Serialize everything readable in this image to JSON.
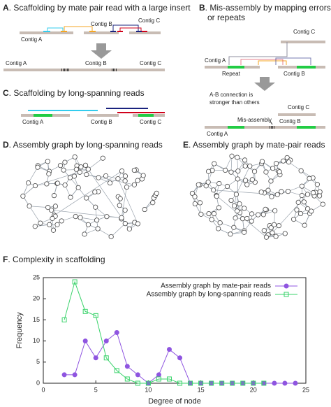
{
  "panels": {
    "a": {
      "letter": "A",
      "title": ". Scaffolding by mate pair read with a large insert",
      "top": [
        "Contig A",
        "Contig B",
        "Contig C"
      ],
      "bottom": [
        "Contig A",
        "Contig B",
        "Contig C"
      ]
    },
    "b": {
      "letter": "B",
      "title": [
        ". Mis-assembly by mapping errors",
        "or repeats"
      ],
      "top_c": "Contig C",
      "contig_a": "Contig A",
      "repeat": "Repeat",
      "contig_b": "Contig B",
      "note": [
        "A-B connection is",
        "stronger than others"
      ],
      "bottom_c": "Contig C",
      "misassembly": "Mis-assembly",
      "bottom_a": "Contig A",
      "bottom_b": "Contig B"
    },
    "c": {
      "letter": "C",
      "title": ". Scaffolding by long-spanning reads",
      "contigs": [
        "Contig A",
        "Contig B",
        "Contig C"
      ]
    },
    "d": {
      "letter": "D",
      "title": ". Assembly graph by long-spanning reads"
    },
    "e": {
      "letter": "E",
      "title": ". Assembly graph by mate-pair reads"
    },
    "f": {
      "letter": "F",
      "title": ". Complexity in scaffolding"
    }
  },
  "chart_data": {
    "type": "line",
    "x_label": "Degree of node",
    "y_label": "Frequency",
    "x": [
      2,
      3,
      4,
      5,
      6,
      7,
      8,
      9,
      10,
      11,
      12,
      13,
      14,
      15,
      16,
      17,
      18,
      19,
      20,
      21,
      22,
      23,
      24
    ],
    "series": [
      {
        "name": "Assembly graph by mate-pair reads",
        "color": "#8f55e0",
        "marker": "circle",
        "values": [
          2,
          2,
          10,
          6,
          10,
          12,
          4,
          2,
          0,
          2,
          8,
          6,
          0,
          0,
          0,
          0,
          0,
          0,
          0,
          0,
          0,
          0,
          0
        ]
      },
      {
        "name": "Assembly graph by long-spanning reads",
        "color": "#3ad36b",
        "marker": "square",
        "values": [
          15,
          24,
          17,
          16,
          6,
          3,
          1,
          0,
          0,
          1,
          1,
          0,
          0,
          0,
          0,
          0,
          0,
          0,
          0,
          0,
          null,
          null,
          null
        ]
      }
    ],
    "xlim": [
      0,
      25
    ],
    "xticks": [
      0,
      5,
      10,
      15,
      20,
      25
    ],
    "ylim": [
      0,
      25
    ],
    "yticks": [
      0,
      5,
      10,
      15,
      20,
      25
    ],
    "legend": "top-right"
  }
}
